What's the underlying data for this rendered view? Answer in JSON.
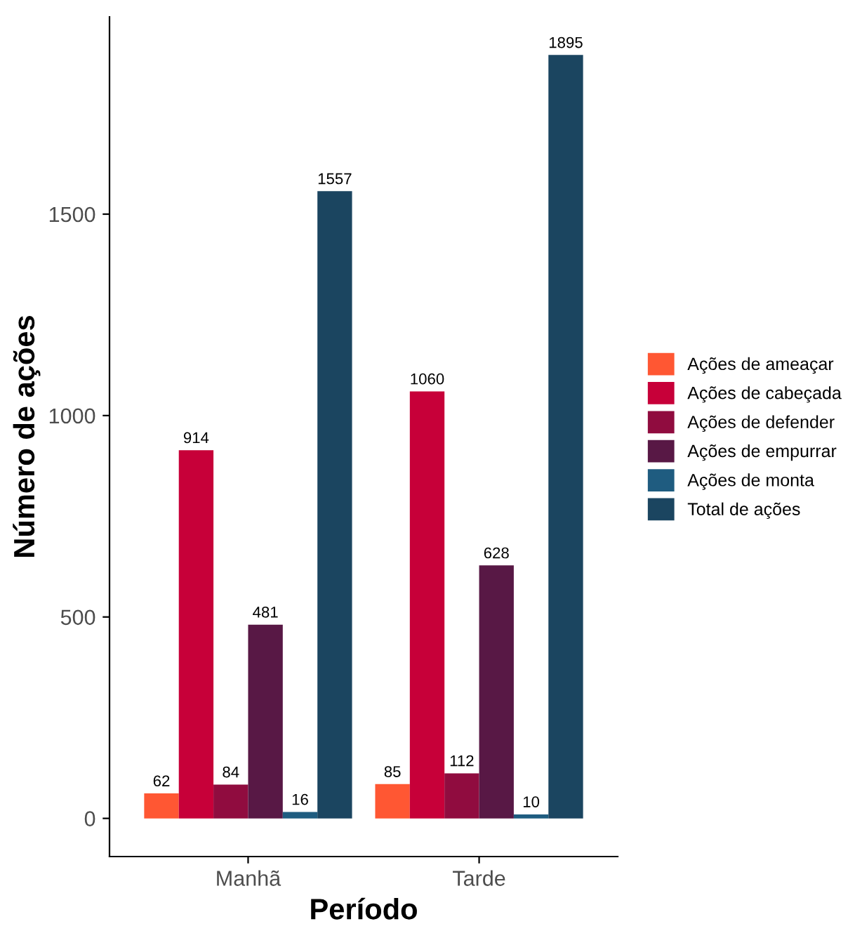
{
  "chart_data": {
    "type": "bar",
    "xlabel": "Período",
    "ylabel": "Número de ações",
    "categories": [
      "Manhã",
      "Tarde"
    ],
    "series": [
      {
        "name": "Ações de ameaçar",
        "color": "#ff5733",
        "values": [
          62,
          85
        ]
      },
      {
        "name": "Ações de cabeçada",
        "color": "#c70039",
        "values": [
          914,
          1060
        ]
      },
      {
        "name": "Ações de defender",
        "color": "#900c3f",
        "values": [
          84,
          112
        ]
      },
      {
        "name": "Ações de empurrar",
        "color": "#581845",
        "values": [
          481,
          628
        ]
      },
      {
        "name": "Ações de monta",
        "color": "#1f5c80",
        "values": [
          16,
          10
        ]
      },
      {
        "name": "Total de ações",
        "color": "#1b4560",
        "values": [
          1557,
          1895
        ]
      }
    ],
    "ylim": [
      -94.75,
      1989.75
    ],
    "yticks": [
      0,
      500,
      1000,
      1500
    ],
    "grid": false,
    "legend": "right",
    "data_labels": true
  }
}
